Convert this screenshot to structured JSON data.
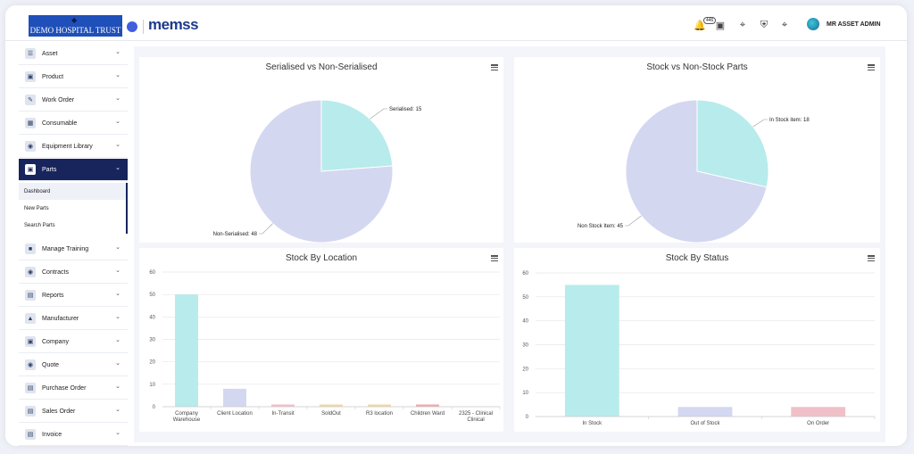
{
  "header": {
    "brand": "DEMO HOSPITAL TRUST",
    "logo": "memss",
    "notifications_count": "446",
    "user_name": "MR ASSET ADMIN",
    "icons": [
      "bell-icon",
      "note-icon",
      "scan-icon",
      "shield-icon",
      "grid-icon"
    ]
  },
  "sidebar": {
    "items": [
      {
        "label": "Asset",
        "icon": "asset-icon"
      },
      {
        "label": "Product",
        "icon": "product-icon"
      },
      {
        "label": "Work Order",
        "icon": "work-order-icon"
      },
      {
        "label": "Consumable",
        "icon": "consumable-icon"
      },
      {
        "label": "Equipment Library",
        "icon": "library-icon"
      },
      {
        "label": "Parts",
        "icon": "parts-icon",
        "active": true
      },
      {
        "label": "Manage Training",
        "icon": "training-icon"
      },
      {
        "label": "Contracts",
        "icon": "contracts-icon"
      },
      {
        "label": "Reports",
        "icon": "reports-icon"
      },
      {
        "label": "Manufacturer",
        "icon": "manufacturer-icon"
      },
      {
        "label": "Company",
        "icon": "company-icon"
      },
      {
        "label": "Quote",
        "icon": "quote-icon"
      },
      {
        "label": "Purchase Order",
        "icon": "purchase-order-icon"
      },
      {
        "label": "Sales Order",
        "icon": "sales-order-icon"
      },
      {
        "label": "Invoice",
        "icon": "invoice-icon"
      }
    ],
    "parts_sub": [
      "Dashboard",
      "New Parts",
      "Search Parts"
    ]
  },
  "colors": {
    "teal": "#b8ebec",
    "lavender": "#d4d7f0",
    "pink": "#f0c0c8",
    "orange": "#f3d6a8",
    "red": "#f0a8aa",
    "nav_active": "#17255c"
  },
  "chart_data": [
    {
      "type": "pie",
      "title": "Serialised vs Non-Serialised",
      "labels": [
        "Serialised",
        "Non-Serialised"
      ],
      "values": [
        15,
        48
      ],
      "data_labels": [
        "Serialised: 15",
        "Non-Serialised: 48"
      ]
    },
    {
      "type": "pie",
      "title": "Stock vs Non-Stock Parts",
      "labels": [
        "In Stock item",
        "Non Stock Item"
      ],
      "values": [
        18,
        45
      ],
      "data_labels": [
        "In Stock item: 18",
        "Non Stock Item: 45"
      ]
    },
    {
      "type": "bar",
      "title": "Stock By Location",
      "categories": [
        "Company Warehouse",
        "Client Location",
        "In-Transit",
        "SoldOut",
        "R3 location",
        "Children Ward",
        "2325 - Clinical Clinical"
      ],
      "category_lines": [
        [
          "Company",
          "Warehouse"
        ],
        [
          "Client Location"
        ],
        [
          "In-Transit"
        ],
        [
          "SoldOut"
        ],
        [
          "R3 location"
        ],
        [
          "Children Ward"
        ],
        [
          "2325 - Clinical",
          "Clinical"
        ]
      ],
      "values": [
        50,
        8,
        1,
        1,
        1,
        1,
        0
      ],
      "ylim": [
        0,
        60
      ],
      "yticks": [
        0,
        10,
        20,
        30,
        40,
        50,
        60
      ]
    },
    {
      "type": "bar",
      "title": "Stock By Status",
      "categories": [
        "In Stock",
        "Out of Stock",
        "On Order"
      ],
      "values": [
        55,
        4,
        4
      ],
      "ylim": [
        0,
        60
      ],
      "yticks": [
        0,
        10,
        20,
        30,
        40,
        50,
        60
      ]
    }
  ]
}
